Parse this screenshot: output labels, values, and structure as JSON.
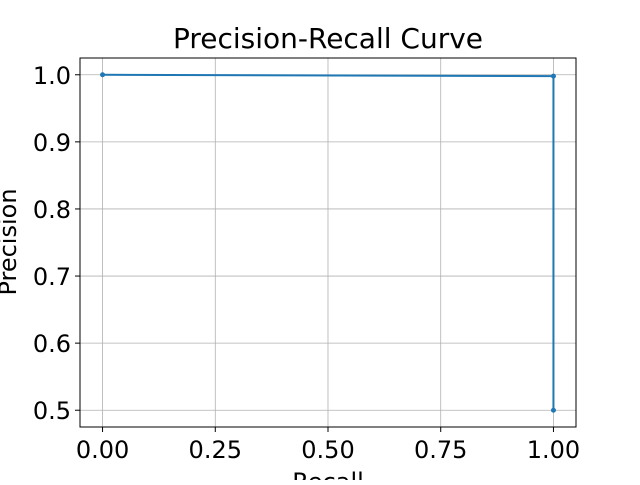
{
  "chart_data": {
    "type": "line",
    "title": "Precision-Recall Curve",
    "xlabel": "Recall",
    "ylabel": "Precision",
    "xlim": [
      -0.05,
      1.05
    ],
    "ylim": [
      0.475,
      1.025
    ],
    "grid": true,
    "xticks": [
      0.0,
      0.25,
      0.5,
      0.75,
      1.0
    ],
    "xtick_labels": [
      "0.00",
      "0.25",
      "0.50",
      "0.75",
      "1.00"
    ],
    "yticks": [
      0.5,
      0.6,
      0.7,
      0.8,
      0.9,
      1.0
    ],
    "ytick_labels": [
      "0.5",
      "0.6",
      "0.7",
      "0.8",
      "0.9",
      "1.0"
    ],
    "series": [
      {
        "x": [
          0.0,
          1.0,
          1.0
        ],
        "y": [
          1.0,
          0.998,
          0.5
        ],
        "color": "#1f77b4",
        "marker": "point"
      }
    ]
  }
}
